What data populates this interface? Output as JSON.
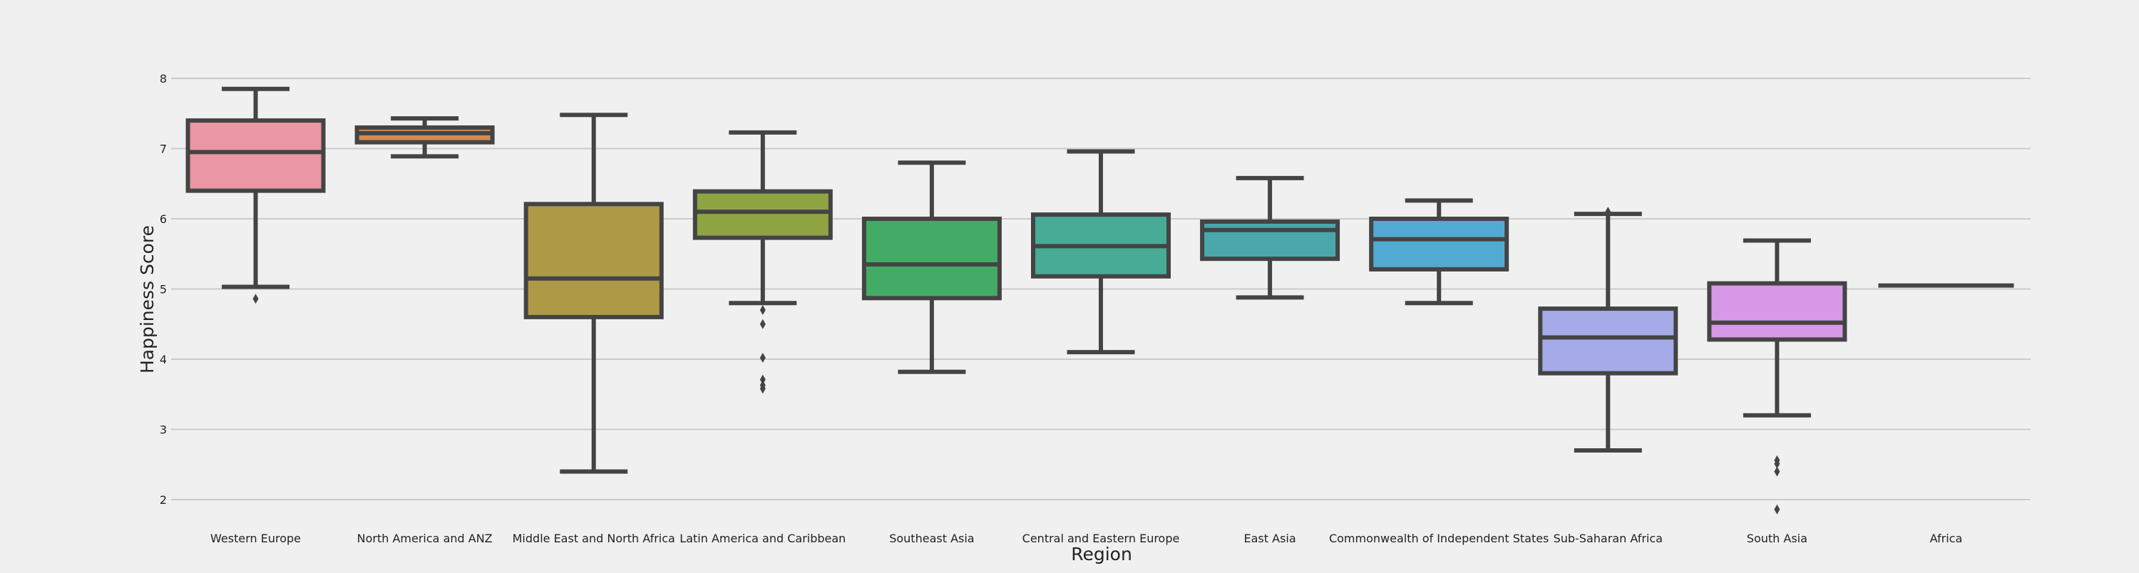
{
  "chart_data": {
    "type": "box",
    "title": "",
    "xlabel": "Region",
    "ylabel": "Happiness Score",
    "ylim": [
      1.8,
      8.5
    ],
    "yticks": [
      2,
      3,
      4,
      5,
      6,
      7,
      8
    ],
    "grid": "horizontal",
    "legend": "none",
    "categories": [
      "Western Europe",
      "North America and ANZ",
      "Middle East and North Africa",
      "Latin America and Caribbean",
      "Southeast Asia",
      "Central and Eastern Europe",
      "East Asia",
      "Commonwealth of Independent States",
      "Sub-Saharan Africa",
      "South Asia",
      "Africa"
    ],
    "boxes": [
      {
        "category": "Western Europe",
        "whisker_low": 5.03,
        "q1": 6.4,
        "median": 6.95,
        "q3": 7.4,
        "whisker_high": 7.85,
        "outliers": [
          4.86
        ],
        "color": "#ea96a3"
      },
      {
        "category": "North America and ANZ",
        "whisker_low": 6.89,
        "q1": 7.09,
        "median": 7.22,
        "q3": 7.3,
        "whisker_high": 7.43,
        "outliers": [],
        "color": "#d48b4f"
      },
      {
        "category": "Middle East and North Africa",
        "whisker_low": 2.4,
        "q1": 4.6,
        "median": 5.15,
        "q3": 6.21,
        "whisker_high": 7.48,
        "outliers": [],
        "color": "#ae9a46"
      },
      {
        "category": "Latin America and Caribbean",
        "whisker_low": 4.8,
        "q1": 5.73,
        "median": 6.1,
        "q3": 6.39,
        "whisker_high": 7.23,
        "outliers": [
          4.7,
          4.5,
          4.02,
          3.71,
          3.63,
          3.58
        ],
        "color": "#8ea443"
      },
      {
        "category": "Southeast Asia",
        "whisker_low": 3.82,
        "q1": 4.87,
        "median": 5.35,
        "q3": 6.0,
        "whisker_high": 6.8,
        "outliers": [],
        "color": "#44ab66"
      },
      {
        "category": "Central and Eastern Europe",
        "whisker_low": 4.1,
        "q1": 5.18,
        "median": 5.61,
        "q3": 6.06,
        "whisker_high": 6.96,
        "outliers": [],
        "color": "#47ab96"
      },
      {
        "category": "East Asia",
        "whisker_low": 4.88,
        "q1": 5.43,
        "median": 5.84,
        "q3": 5.96,
        "whisker_high": 6.58,
        "outliers": [],
        "color": "#4aa8ac"
      },
      {
        "category": "Commonwealth of Independent States",
        "whisker_low": 4.8,
        "q1": 5.28,
        "median": 5.71,
        "q3": 6.0,
        "whisker_high": 6.26,
        "outliers": [],
        "color": "#52aad3"
      },
      {
        "category": "Sub-Saharan Africa",
        "whisker_low": 2.7,
        "q1": 3.8,
        "median": 4.31,
        "q3": 4.72,
        "whisker_high": 6.07,
        "outliers": [
          6.1
        ],
        "color": "#a5abe8"
      },
      {
        "category": "South Asia",
        "whisker_low": 3.2,
        "q1": 4.28,
        "median": 4.52,
        "q3": 5.08,
        "whisker_high": 5.69,
        "outliers": [
          2.56,
          2.51,
          2.4,
          1.86
        ],
        "color": "#d798e8"
      },
      {
        "category": "Africa",
        "whisker_low": 5.05,
        "q1": 5.05,
        "median": 5.05,
        "q3": 5.05,
        "whisker_high": 5.05,
        "outliers": [],
        "color": "#ea96a3"
      }
    ]
  }
}
